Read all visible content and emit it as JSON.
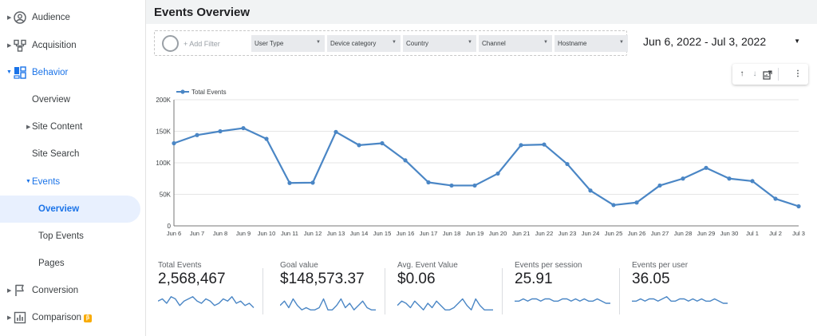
{
  "sidebar": {
    "items": [
      {
        "label": "Audience",
        "icon": "account-circle-icon"
      },
      {
        "label": "Acquisition",
        "icon": "acquisition-icon"
      },
      {
        "label": "Behavior",
        "icon": "behavior-icon"
      },
      {
        "label": "Overview"
      },
      {
        "label": "Site Content"
      },
      {
        "label": "Site Search"
      },
      {
        "label": "Events"
      },
      {
        "label": "Overview"
      },
      {
        "label": "Top Events"
      },
      {
        "label": "Pages"
      },
      {
        "label": "Conversion",
        "icon": "flag-icon"
      },
      {
        "label": "Comparison",
        "icon": "bar-chart-icon",
        "badge": "β"
      }
    ]
  },
  "header": {
    "title": "Events Overview"
  },
  "filters": {
    "add_filter": "+ Add Filter",
    "dimensions": [
      "User Type",
      "Device category",
      "Country",
      "Channel",
      "Hostname"
    ]
  },
  "date_range": {
    "label": "Jun 6, 2022 - Jul 3, 2022"
  },
  "colors": {
    "accent": "#1a73e8",
    "series": "#4a86c5",
    "selected_bg": "#e8f0fe"
  },
  "chart_data": {
    "type": "line",
    "title": "",
    "series": [
      {
        "name": "Total Events",
        "values": [
          131000,
          144000,
          150000,
          155000,
          138000,
          68000,
          68500,
          149000,
          128000,
          131000,
          104000,
          69000,
          64000,
          64000,
          83000,
          128000,
          129000,
          98000,
          56000,
          33000,
          37000,
          64000,
          75000,
          92000,
          75000,
          71000,
          43000,
          31000
        ]
      }
    ],
    "categories": [
      "Jun 6",
      "Jun 7",
      "Jun 8",
      "Jun 9",
      "Jun 10",
      "Jun 11",
      "Jun 12",
      "Jun 13",
      "Jun 14",
      "Jun 15",
      "Jun 16",
      "Jun 17",
      "Jun 18",
      "Jun 19",
      "Jun 20",
      "Jun 21",
      "Jun 22",
      "Jun 23",
      "Jun 24",
      "Jun 25",
      "Jun 26",
      "Jun 27",
      "Jun 28",
      "Jun 29",
      "Jun 30",
      "Jul 1",
      "Jul 2",
      "Jul 3"
    ],
    "yticks": [
      0,
      50000,
      100000,
      150000,
      200000
    ],
    "ytick_labels": [
      "0",
      "50K",
      "100K",
      "150K",
      "200K"
    ],
    "ylim": [
      0,
      200000
    ],
    "legend": "top-left",
    "grid": "horizontal"
  },
  "scorecards": [
    {
      "label": "Total Events",
      "value": "2,568,467",
      "spark": [
        5,
        6,
        4,
        7,
        6,
        3,
        5,
        6,
        7,
        5,
        4,
        6,
        5,
        3,
        4,
        6,
        5,
        7,
        4,
        5,
        3,
        4,
        2
      ]
    },
    {
      "label": "Goal value",
      "value": "$148,573.37",
      "spark": [
        3,
        5,
        2,
        6,
        3,
        1,
        2,
        1,
        1,
        2,
        6,
        1,
        1,
        3,
        6,
        2,
        4,
        1,
        3,
        5,
        2,
        1,
        1
      ]
    },
    {
      "label": "Avg. Event Value",
      "value": "$0.06",
      "spark": [
        3,
        5,
        4,
        2,
        5,
        3,
        1,
        4,
        2,
        5,
        3,
        1,
        1,
        2,
        4,
        6,
        3,
        1,
        6,
        3,
        1,
        1,
        1
      ]
    },
    {
      "label": "Events per session",
      "value": "25.91",
      "spark": [
        5,
        5,
        6,
        5,
        6,
        6,
        5,
        6,
        6,
        5,
        5,
        6,
        6,
        5,
        6,
        5,
        6,
        5,
        5,
        6,
        5,
        4,
        4
      ]
    },
    {
      "label": "Events per user",
      "value": "36.05",
      "spark": [
        5,
        5,
        6,
        5,
        6,
        6,
        5,
        6,
        7,
        5,
        5,
        6,
        6,
        5,
        6,
        5,
        6,
        5,
        5,
        6,
        5,
        4,
        4
      ]
    }
  ]
}
